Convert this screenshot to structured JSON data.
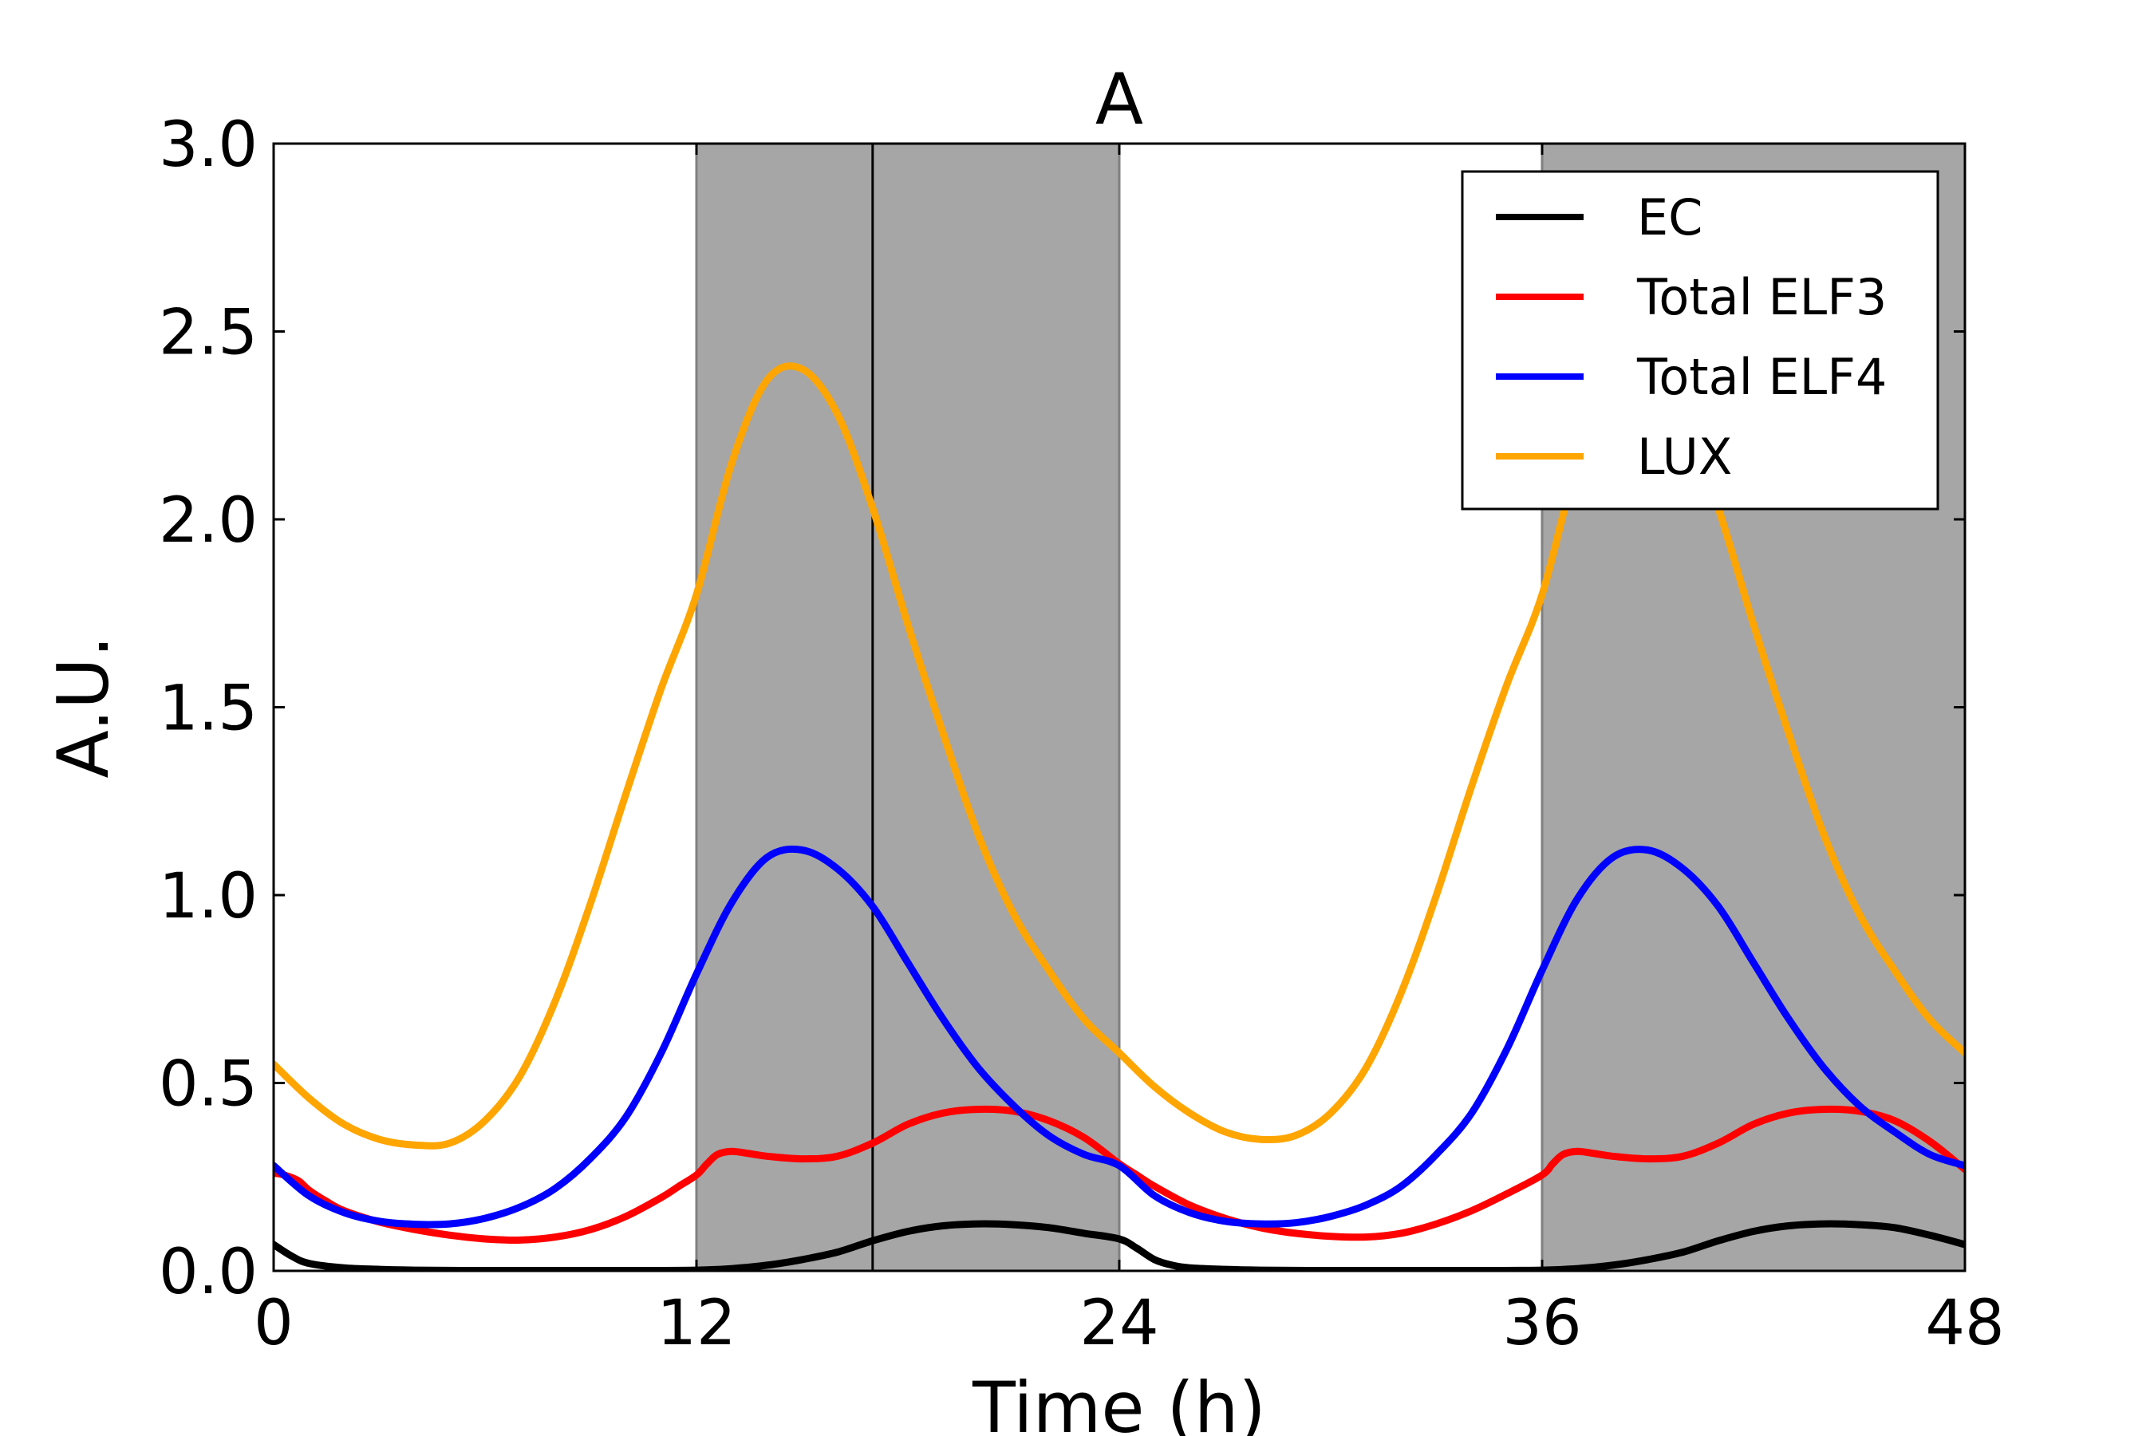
{
  "chart_data": {
    "type": "line",
    "title": "A",
    "xlabel": "Time (h)",
    "ylabel": "A.U.",
    "xlim": [
      0,
      48
    ],
    "ylim": [
      0,
      3.0
    ],
    "xticks": [
      0,
      12,
      24,
      36,
      48
    ],
    "xtick_labels": [
      "0",
      "12",
      "24",
      "36",
      "48"
    ],
    "yticks": [
      0,
      0.5,
      1.0,
      1.5,
      2.0,
      2.5,
      3.0
    ],
    "ytick_labels": [
      "0.0",
      "0.5",
      "1.0",
      "1.5",
      "2.0",
      "2.5",
      "3.0"
    ],
    "grid": false,
    "legend_position": "top-right",
    "dark_intervals": [
      [
        12,
        24
      ],
      [
        36,
        48
      ]
    ],
    "vertical_marker_x": 17,
    "shading_color": "#a6a6a6",
    "series": [
      {
        "name": "EC",
        "color": "#000000",
        "points": [
          [
            0,
            0.07
          ],
          [
            0.5,
            0.04
          ],
          [
            1,
            0.02
          ],
          [
            2,
            0.008
          ],
          [
            3,
            0.004
          ],
          [
            4,
            0.002
          ],
          [
            6,
            0.001
          ],
          [
            8,
            0.001
          ],
          [
            10,
            0.001
          ],
          [
            12,
            0.002
          ],
          [
            13,
            0.006
          ],
          [
            14,
            0.015
          ],
          [
            15,
            0.03
          ],
          [
            16,
            0.05
          ],
          [
            17,
            0.08
          ],
          [
            18,
            0.105
          ],
          [
            19,
            0.12
          ],
          [
            20,
            0.125
          ],
          [
            21,
            0.123
          ],
          [
            22,
            0.115
          ],
          [
            23,
            0.1
          ],
          [
            24,
            0.085
          ],
          [
            24.5,
            0.06
          ],
          [
            25,
            0.03
          ],
          [
            25.5,
            0.015
          ],
          [
            26,
            0.008
          ],
          [
            27,
            0.004
          ],
          [
            28,
            0.002
          ],
          [
            30,
            0.001
          ],
          [
            32,
            0.001
          ],
          [
            34,
            0.001
          ],
          [
            36,
            0.002
          ],
          [
            37,
            0.006
          ],
          [
            38,
            0.015
          ],
          [
            39,
            0.03
          ],
          [
            40,
            0.05
          ],
          [
            41,
            0.08
          ],
          [
            42,
            0.105
          ],
          [
            43,
            0.12
          ],
          [
            44,
            0.125
          ],
          [
            45,
            0.123
          ],
          [
            46,
            0.115
          ],
          [
            47,
            0.095
          ],
          [
            48,
            0.07
          ]
        ]
      },
      {
        "name": "Total ELF3",
        "color": "#ff0000",
        "points": [
          [
            0,
            0.26
          ],
          [
            0.3,
            0.255
          ],
          [
            0.7,
            0.24
          ],
          [
            1,
            0.215
          ],
          [
            1.5,
            0.185
          ],
          [
            2,
            0.16
          ],
          [
            3,
            0.13
          ],
          [
            4,
            0.11
          ],
          [
            5,
            0.095
          ],
          [
            6,
            0.085
          ],
          [
            7,
            0.082
          ],
          [
            8,
            0.09
          ],
          [
            9,
            0.11
          ],
          [
            10,
            0.145
          ],
          [
            11,
            0.195
          ],
          [
            11.5,
            0.225
          ],
          [
            12,
            0.255
          ],
          [
            12.3,
            0.285
          ],
          [
            12.6,
            0.31
          ],
          [
            13,
            0.318
          ],
          [
            13.5,
            0.312
          ],
          [
            14,
            0.305
          ],
          [
            15,
            0.298
          ],
          [
            16,
            0.305
          ],
          [
            17,
            0.34
          ],
          [
            18,
            0.39
          ],
          [
            19,
            0.42
          ],
          [
            20,
            0.43
          ],
          [
            21,
            0.425
          ],
          [
            22,
            0.4
          ],
          [
            23,
            0.355
          ],
          [
            24,
            0.285
          ],
          [
            24.5,
            0.255
          ],
          [
            25,
            0.225
          ],
          [
            26,
            0.175
          ],
          [
            27,
            0.14
          ],
          [
            28,
            0.115
          ],
          [
            29,
            0.1
          ],
          [
            30,
            0.092
          ],
          [
            31,
            0.09
          ],
          [
            32,
            0.1
          ],
          [
            33,
            0.125
          ],
          [
            34,
            0.16
          ],
          [
            35,
            0.205
          ],
          [
            36,
            0.255
          ],
          [
            36.3,
            0.285
          ],
          [
            36.6,
            0.31
          ],
          [
            37,
            0.318
          ],
          [
            37.5,
            0.312
          ],
          [
            38,
            0.305
          ],
          [
            39,
            0.298
          ],
          [
            40,
            0.305
          ],
          [
            41,
            0.34
          ],
          [
            42,
            0.39
          ],
          [
            43,
            0.42
          ],
          [
            44,
            0.43
          ],
          [
            45,
            0.425
          ],
          [
            46,
            0.4
          ],
          [
            47,
            0.345
          ],
          [
            48,
            0.27
          ]
        ]
      },
      {
        "name": "Total ELF4",
        "color": "#0000ff",
        "points": [
          [
            0,
            0.28
          ],
          [
            1,
            0.2
          ],
          [
            2,
            0.155
          ],
          [
            3,
            0.132
          ],
          [
            4,
            0.124
          ],
          [
            5,
            0.125
          ],
          [
            6,
            0.14
          ],
          [
            7,
            0.17
          ],
          [
            8,
            0.22
          ],
          [
            9,
            0.3
          ],
          [
            10,
            0.41
          ],
          [
            11,
            0.58
          ],
          [
            12,
            0.79
          ],
          [
            13,
            0.98
          ],
          [
            14,
            1.1
          ],
          [
            15,
            1.12
          ],
          [
            16,
            1.07
          ],
          [
            17,
            0.97
          ],
          [
            18,
            0.82
          ],
          [
            19,
            0.67
          ],
          [
            20,
            0.54
          ],
          [
            21,
            0.44
          ],
          [
            22,
            0.36
          ],
          [
            23,
            0.31
          ],
          [
            24,
            0.28
          ],
          [
            25,
            0.2
          ],
          [
            26,
            0.155
          ],
          [
            27,
            0.132
          ],
          [
            28,
            0.125
          ],
          [
            29,
            0.128
          ],
          [
            30,
            0.145
          ],
          [
            31,
            0.175
          ],
          [
            32,
            0.225
          ],
          [
            33,
            0.31
          ],
          [
            34,
            0.42
          ],
          [
            35,
            0.59
          ],
          [
            36,
            0.8
          ],
          [
            37,
            0.99
          ],
          [
            38,
            1.1
          ],
          [
            39,
            1.12
          ],
          [
            40,
            1.07
          ],
          [
            41,
            0.97
          ],
          [
            42,
            0.82
          ],
          [
            43,
            0.67
          ],
          [
            44,
            0.54
          ],
          [
            45,
            0.44
          ],
          [
            46,
            0.37
          ],
          [
            47,
            0.31
          ],
          [
            48,
            0.28
          ]
        ]
      },
      {
        "name": "LUX",
        "color": "#ffa500",
        "points": [
          [
            0,
            0.55
          ],
          [
            1,
            0.46
          ],
          [
            2,
            0.39
          ],
          [
            3,
            0.35
          ],
          [
            4,
            0.335
          ],
          [
            5,
            0.34
          ],
          [
            6,
            0.4
          ],
          [
            7,
            0.52
          ],
          [
            8,
            0.72
          ],
          [
            9,
            0.98
          ],
          [
            10,
            1.27
          ],
          [
            11,
            1.55
          ],
          [
            12,
            1.8
          ],
          [
            13,
            2.15
          ],
          [
            14,
            2.37
          ],
          [
            15,
            2.4
          ],
          [
            16,
            2.28
          ],
          [
            17,
            2.03
          ],
          [
            18,
            1.72
          ],
          [
            19,
            1.43
          ],
          [
            20,
            1.16
          ],
          [
            21,
            0.95
          ],
          [
            22,
            0.8
          ],
          [
            23,
            0.67
          ],
          [
            24,
            0.58
          ],
          [
            25,
            0.49
          ],
          [
            26,
            0.42
          ],
          [
            27,
            0.37
          ],
          [
            28,
            0.35
          ],
          [
            29,
            0.36
          ],
          [
            30,
            0.42
          ],
          [
            31,
            0.54
          ],
          [
            32,
            0.74
          ],
          [
            33,
            1.0
          ],
          [
            34,
            1.29
          ],
          [
            35,
            1.56
          ],
          [
            36,
            1.8
          ],
          [
            37,
            2.15
          ],
          [
            38,
            2.37
          ],
          [
            39,
            2.4
          ],
          [
            40,
            2.28
          ],
          [
            41,
            2.03
          ],
          [
            42,
            1.72
          ],
          [
            43,
            1.43
          ],
          [
            44,
            1.16
          ],
          [
            45,
            0.95
          ],
          [
            46,
            0.8
          ],
          [
            47,
            0.67
          ],
          [
            48,
            0.58
          ]
        ]
      }
    ]
  }
}
